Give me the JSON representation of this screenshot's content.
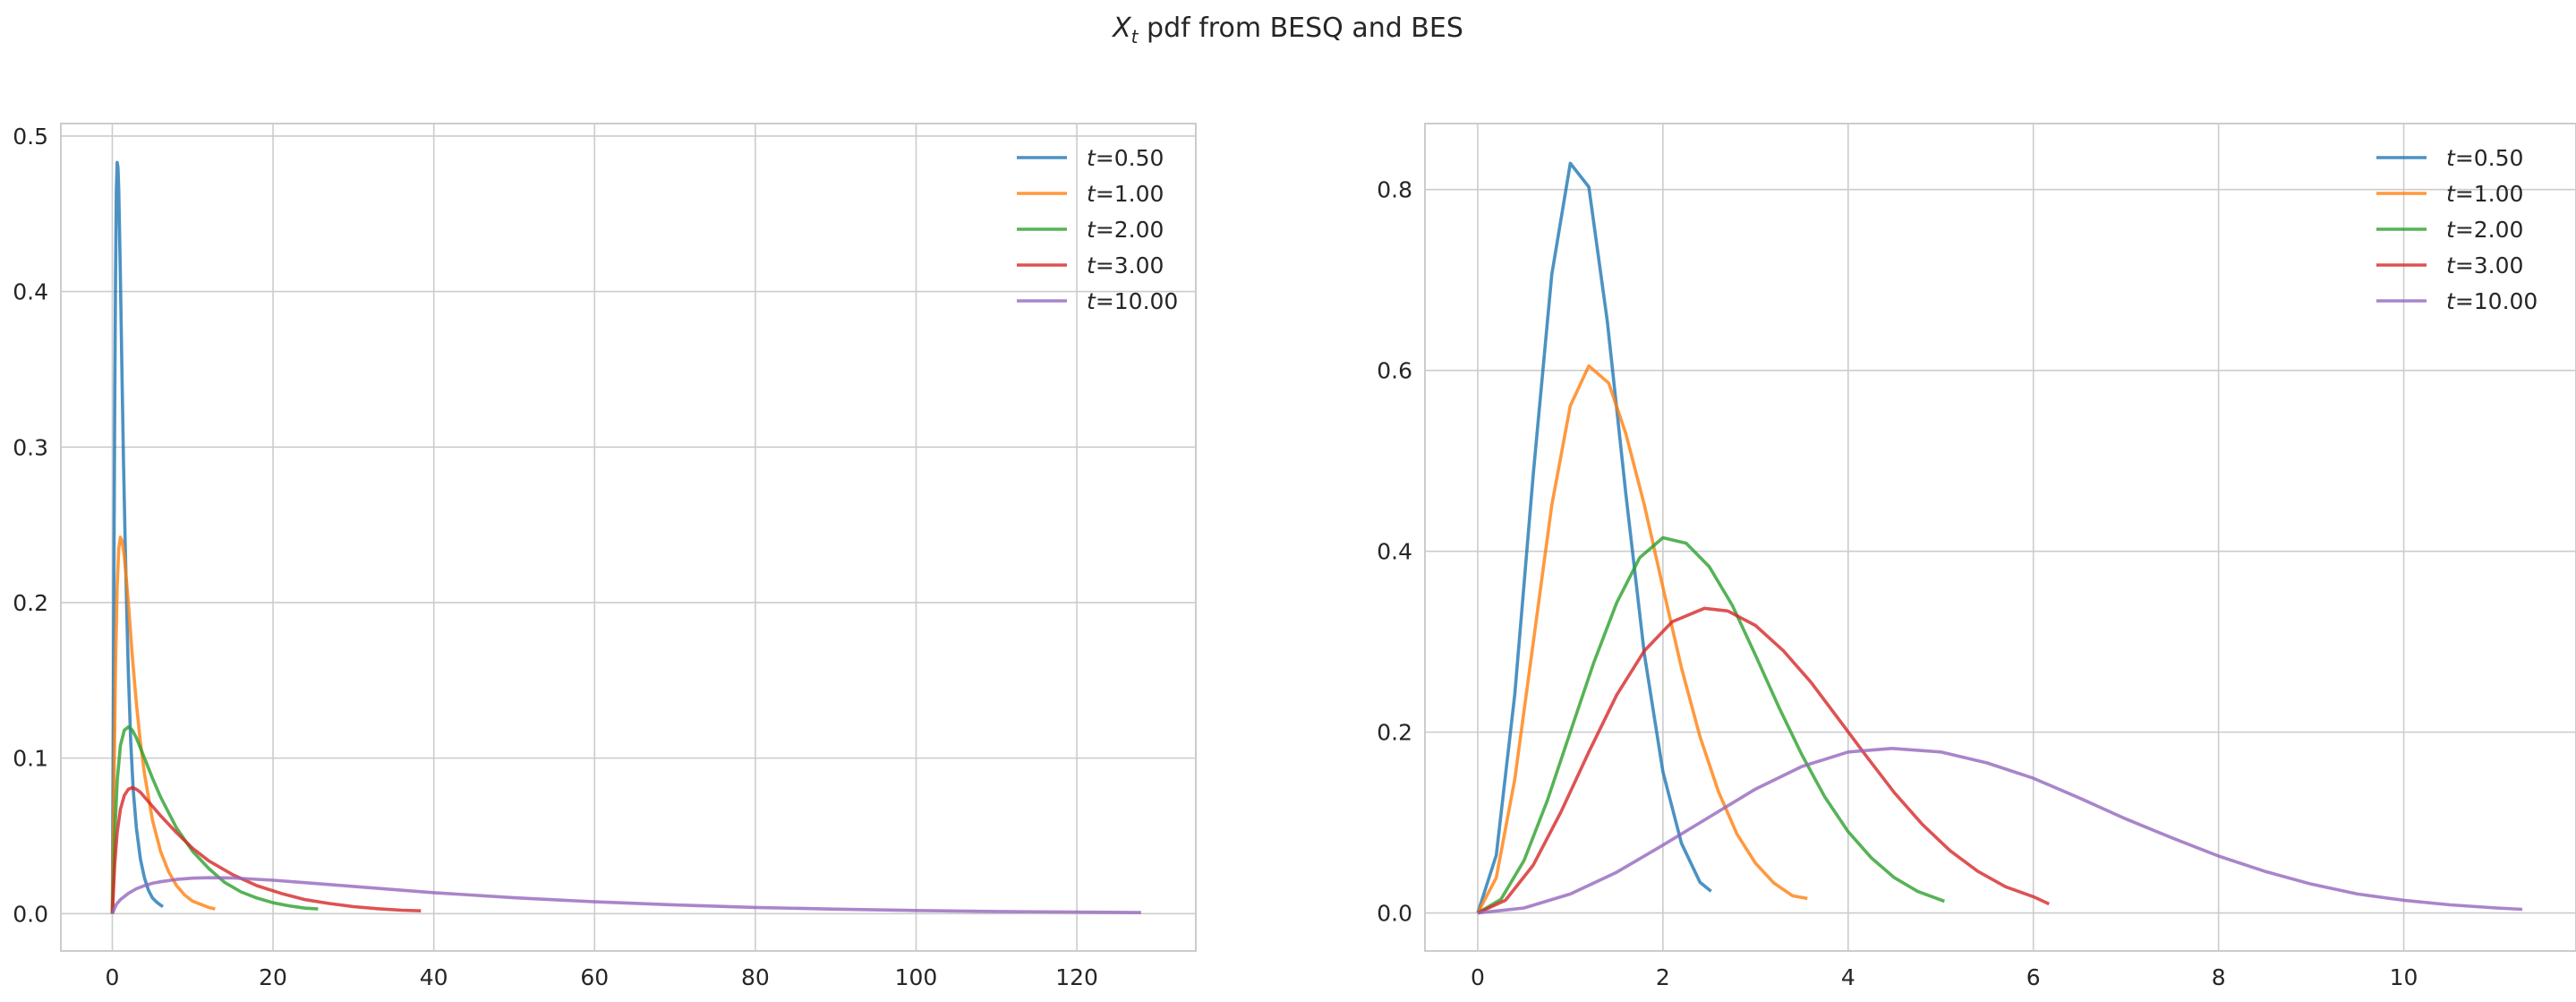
{
  "figure": {
    "title_var": "X",
    "title_sub": "t",
    "title_rest": " pdf from BESQ and BES"
  },
  "legend_prefix": "t",
  "chart_data": [
    {
      "type": "line",
      "title": "",
      "xlabel": "",
      "ylabel": "",
      "xlim": [
        -6.4,
        134.8
      ],
      "ylim": [
        -0.024,
        0.508
      ],
      "xticks": [
        0,
        20,
        40,
        60,
        80,
        100,
        120
      ],
      "yticks": [
        0.0,
        0.1,
        0.2,
        0.3,
        0.4,
        0.5
      ],
      "ytick_labels": [
        "0.0",
        "0.1",
        "0.2",
        "0.3",
        "0.4",
        "0.5"
      ],
      "grid": true,
      "legend_position": "top-right",
      "series": [
        {
          "name": "=0.50",
          "color": "#1f77b4",
          "x": [
            0,
            0.1,
            0.2,
            0.3,
            0.4,
            0.5,
            0.6,
            0.7,
            0.8,
            1.0,
            1.2,
            1.4,
            1.6,
            1.8,
            2.0,
            2.3,
            2.6,
            3.0,
            3.5,
            4.0,
            4.5,
            5.0,
            5.5,
            6.0,
            6.3
          ],
          "y": [
            0.0,
            0.1,
            0.22,
            0.33,
            0.41,
            0.465,
            0.483,
            0.48,
            0.465,
            0.41,
            0.35,
            0.29,
            0.24,
            0.195,
            0.155,
            0.11,
            0.08,
            0.055,
            0.035,
            0.023,
            0.015,
            0.01,
            0.0075,
            0.0055,
            0.0045
          ]
        },
        {
          "name": "=1.00",
          "color": "#ff7f0e",
          "x": [
            0,
            0.2,
            0.4,
            0.6,
            0.8,
            1.0,
            1.2,
            1.5,
            2.0,
            2.5,
            3.0,
            3.5,
            4.0,
            5.0,
            6.0,
            7.0,
            8.0,
            9.0,
            10.0,
            11.0,
            12.0,
            12.8
          ],
          "y": [
            0.0,
            0.08,
            0.16,
            0.21,
            0.235,
            0.242,
            0.24,
            0.23,
            0.2,
            0.165,
            0.135,
            0.11,
            0.09,
            0.06,
            0.04,
            0.027,
            0.018,
            0.012,
            0.008,
            0.006,
            0.004,
            0.003
          ]
        },
        {
          "name": "=2.00",
          "color": "#2ca02c",
          "x": [
            0,
            0.3,
            0.6,
            1.0,
            1.5,
            2.0,
            2.5,
            3.0,
            4.0,
            5.0,
            6.0,
            8.0,
            10.0,
            12.0,
            14.0,
            16.0,
            18.0,
            20.0,
            22.0,
            24.0,
            25.6
          ],
          "y": [
            0.0,
            0.05,
            0.085,
            0.108,
            0.118,
            0.12,
            0.118,
            0.113,
            0.1,
            0.087,
            0.075,
            0.055,
            0.04,
            0.029,
            0.02,
            0.014,
            0.01,
            0.007,
            0.005,
            0.0035,
            0.003
          ]
        },
        {
          "name": "=3.00",
          "color": "#d62728",
          "x": [
            0,
            0.3,
            0.6,
            1.0,
            1.5,
            2.0,
            2.5,
            3.0,
            3.5,
            4.0,
            5.0,
            6.0,
            8.0,
            10.0,
            12.0,
            15.0,
            18.0,
            21.0,
            24.0,
            27.0,
            30.0,
            33.0,
            36.0,
            38.4
          ],
          "y": [
            0.0,
            0.032,
            0.052,
            0.067,
            0.076,
            0.08,
            0.081,
            0.08,
            0.078,
            0.075,
            0.069,
            0.063,
            0.052,
            0.042,
            0.034,
            0.025,
            0.018,
            0.013,
            0.009,
            0.0065,
            0.0045,
            0.0032,
            0.0022,
            0.0018
          ]
        },
        {
          "name": "=10.00",
          "color": "#9467bd",
          "x": [
            0,
            0.5,
            1,
            2,
            3,
            4,
            5,
            6,
            8,
            10,
            12,
            15,
            20,
            25,
            30,
            40,
            50,
            60,
            70,
            80,
            90,
            100,
            110,
            120,
            128
          ],
          "y": [
            0.0,
            0.006,
            0.009,
            0.013,
            0.016,
            0.018,
            0.0195,
            0.0205,
            0.022,
            0.0228,
            0.0231,
            0.0229,
            0.0215,
            0.0195,
            0.0175,
            0.0135,
            0.0102,
            0.0076,
            0.0056,
            0.004,
            0.0029,
            0.002,
            0.0014,
            0.001,
            0.0007
          ]
        }
      ]
    },
    {
      "type": "line",
      "title": "",
      "xlabel": "",
      "ylabel": "",
      "xlim": [
        -0.57,
        11.86
      ],
      "ylim": [
        -0.042,
        0.873
      ],
      "xticks": [
        0,
        2,
        4,
        6,
        8,
        10
      ],
      "yticks": [
        0.0,
        0.2,
        0.4,
        0.6,
        0.8
      ],
      "ytick_labels": [
        "0.0",
        "0.2",
        "0.4",
        "0.6",
        "0.8"
      ],
      "grid": true,
      "legend_position": "top-right",
      "series": [
        {
          "name": "=0.50",
          "color": "#1f77b4",
          "x": [
            0,
            0.2,
            0.4,
            0.6,
            0.8,
            1.0,
            1.2,
            1.4,
            1.6,
            1.8,
            2.0,
            2.2,
            2.4,
            2.52
          ],
          "y": [
            0.0,
            0.064,
            0.242,
            0.485,
            0.706,
            0.829,
            0.803,
            0.654,
            0.463,
            0.286,
            0.156,
            0.077,
            0.034,
            0.024
          ]
        },
        {
          "name": "=1.00",
          "color": "#ff7f0e",
          "x": [
            0,
            0.2,
            0.4,
            0.6,
            0.8,
            1.0,
            1.2,
            1.414,
            1.6,
            1.8,
            2.0,
            2.2,
            2.4,
            2.6,
            2.8,
            3.0,
            3.2,
            3.4,
            3.56
          ],
          "y": [
            0.0,
            0.039,
            0.148,
            0.299,
            0.451,
            0.561,
            0.605,
            0.586,
            0.53,
            0.451,
            0.36,
            0.271,
            0.195,
            0.134,
            0.087,
            0.055,
            0.033,
            0.019,
            0.016
          ]
        },
        {
          "name": "=2.00",
          "color": "#2ca02c",
          "x": [
            0,
            0.25,
            0.5,
            0.75,
            1.0,
            1.25,
            1.5,
            1.75,
            2.0,
            2.25,
            2.5,
            2.75,
            3.0,
            3.25,
            3.5,
            3.75,
            4.0,
            4.25,
            4.5,
            4.75,
            5.04
          ],
          "y": [
            0.0,
            0.015,
            0.058,
            0.124,
            0.2,
            0.276,
            0.343,
            0.393,
            0.415,
            0.409,
            0.383,
            0.34,
            0.285,
            0.228,
            0.175,
            0.128,
            0.09,
            0.061,
            0.039,
            0.024,
            0.013
          ]
        },
        {
          "name": "=3.00",
          "color": "#d62728",
          "x": [
            0,
            0.3,
            0.6,
            0.9,
            1.2,
            1.5,
            1.8,
            2.1,
            2.449,
            2.7,
            3.0,
            3.3,
            3.6,
            3.9,
            4.2,
            4.5,
            4.8,
            5.1,
            5.4,
            5.7,
            6.0,
            6.17
          ],
          "y": [
            0.0,
            0.014,
            0.053,
            0.112,
            0.178,
            0.241,
            0.29,
            0.322,
            0.337,
            0.334,
            0.318,
            0.29,
            0.255,
            0.214,
            0.173,
            0.133,
            0.098,
            0.069,
            0.046,
            0.029,
            0.018,
            0.01
          ]
        },
        {
          "name": "=10.00",
          "color": "#9467bd",
          "x": [
            0,
            0.5,
            1.0,
            1.5,
            2.0,
            2.5,
            3.0,
            3.5,
            4.0,
            4.472,
            5.0,
            5.5,
            6.0,
            6.5,
            7.0,
            7.5,
            8.0,
            8.5,
            9.0,
            9.5,
            10.0,
            10.5,
            11.0,
            11.28
          ],
          "y": [
            0.0,
            0.0055,
            0.021,
            0.045,
            0.075,
            0.106,
            0.137,
            0.162,
            0.178,
            0.182,
            0.178,
            0.166,
            0.149,
            0.127,
            0.104,
            0.083,
            0.063,
            0.046,
            0.032,
            0.021,
            0.014,
            0.009,
            0.0055,
            0.004
          ]
        }
      ]
    }
  ]
}
